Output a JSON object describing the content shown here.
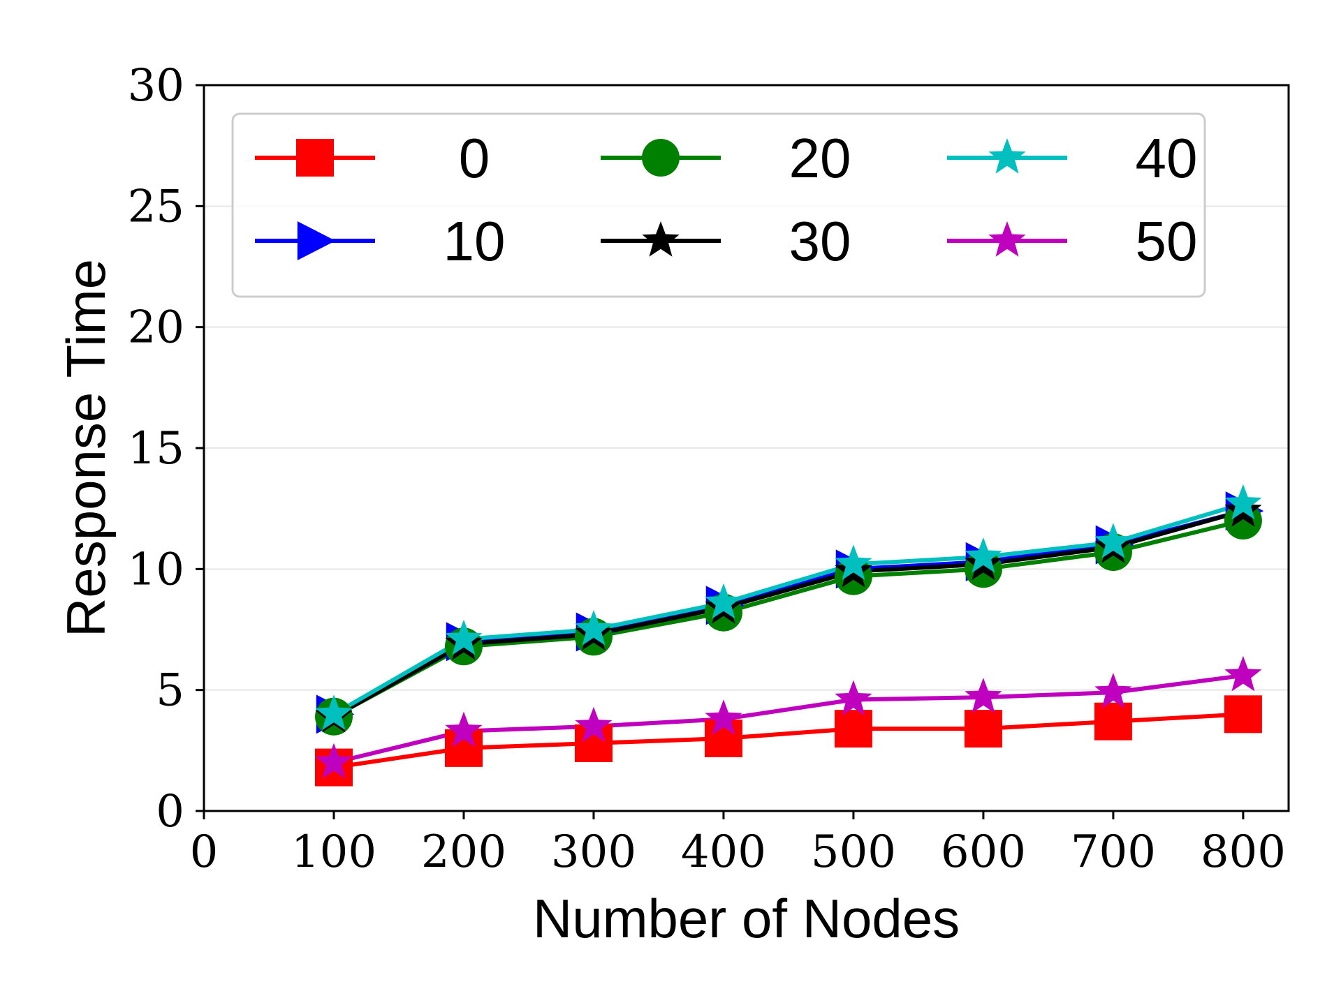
{
  "chart_data": {
    "type": "line",
    "title": "",
    "xlabel": "Number of Nodes",
    "ylabel": "Response Time",
    "xlim": [
      0,
      835
    ],
    "ylim": [
      0,
      30
    ],
    "xticks": [
      0,
      100,
      200,
      300,
      400,
      500,
      600,
      700,
      800
    ],
    "yticks": [
      0,
      5,
      10,
      15,
      20,
      25,
      30
    ],
    "grid": "horizontal",
    "legend_position": "top, 3 columns",
    "x": [
      100,
      200,
      300,
      400,
      500,
      600,
      700,
      800
    ],
    "series": [
      {
        "name": "0",
        "color": "#ff0000",
        "marker": "square",
        "values": [
          1.8,
          2.6,
          2.8,
          3.0,
          3.4,
          3.4,
          3.7,
          4.0
        ]
      },
      {
        "name": "10",
        "color": "#0000ff",
        "marker": "triangle",
        "values": [
          4.0,
          7.0,
          7.4,
          8.5,
          10.0,
          10.3,
          11.0,
          12.4
        ]
      },
      {
        "name": "20",
        "color": "#008000",
        "marker": "circle",
        "values": [
          3.9,
          6.8,
          7.2,
          8.2,
          9.7,
          10.0,
          10.7,
          12.0
        ]
      },
      {
        "name": "30",
        "color": "#000000",
        "marker": "star",
        "values": [
          3.9,
          6.9,
          7.3,
          8.4,
          9.9,
          10.2,
          10.9,
          12.4
        ]
      },
      {
        "name": "40",
        "color": "#00bfbf",
        "marker": "star",
        "values": [
          4.0,
          7.1,
          7.5,
          8.6,
          10.2,
          10.5,
          11.1,
          12.7
        ]
      },
      {
        "name": "50",
        "color": "#bf00bf",
        "marker": "star",
        "values": [
          2.0,
          3.3,
          3.5,
          3.8,
          4.6,
          4.7,
          4.9,
          5.6
        ]
      }
    ]
  }
}
